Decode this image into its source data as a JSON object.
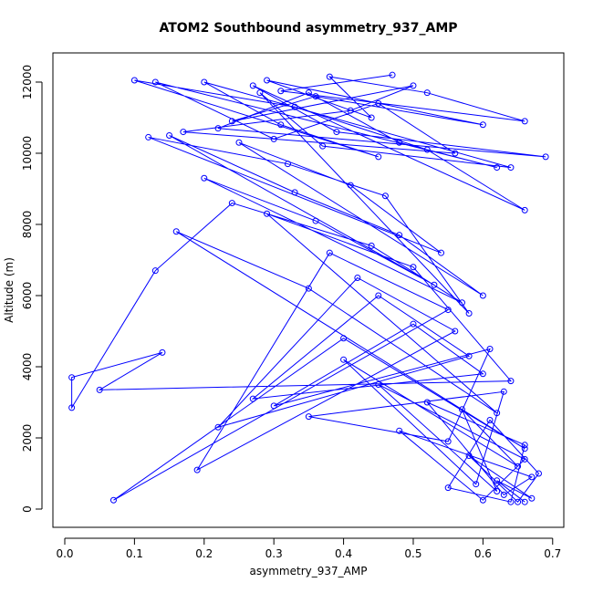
{
  "chart_data": {
    "type": "line",
    "title": "ATOM2 Southbound asymmetry_937_AMP",
    "x_label": "asymmetry_937_AMP",
    "y_label": "Altitude (m)",
    "color": "#0000ff",
    "markers": true,
    "xlim": [
      -0.017,
      0.716
    ],
    "ylim": [
      -513,
      12820
    ],
    "xticks": [
      {
        "value": 0,
        "label": "0.0"
      },
      0.1,
      0.2,
      0.3,
      0.4,
      0.5,
      0.6,
      0.7
    ],
    "yticks": [
      0,
      2000,
      4000,
      6000,
      8000,
      10000,
      12000
    ],
    "x": [
      0.66,
      0.62,
      0.67,
      0.58,
      0.65,
      0.68,
      0.61,
      0.55,
      0.64,
      0.66,
      0.52,
      0.63,
      0.67,
      0.48,
      0.6,
      0.66,
      0.45,
      0.62,
      0.57,
      0.65,
      0.4,
      0.59,
      0.63,
      0.35,
      0.55,
      0.61,
      0.3,
      0.5,
      0.6,
      0.27,
      0.45,
      0.58,
      0.22,
      0.42,
      0.56,
      0.19,
      0.38,
      0.55,
      0.07,
      0.4,
      0.66,
      0.16,
      0.35,
      0.62,
      0.29,
      0.5,
      0.64,
      0.05,
      0.14,
      0.01,
      0.01,
      0.13,
      0.24,
      0.44,
      0.57,
      0.2,
      0.36,
      0.53,
      0.15,
      0.33,
      0.48,
      0.6,
      0.25,
      0.41,
      0.54,
      0.12,
      0.32,
      0.46,
      0.58,
      0.28,
      0.37,
      0.64,
      0.2,
      0.31,
      0.45,
      0.1,
      0.33,
      0.52,
      0.66,
      0.27,
      0.39,
      0.69,
      0.22,
      0.35,
      0.48,
      0.62,
      0.13,
      0.3,
      0.45,
      0.56,
      0.17,
      0.41,
      0.5,
      0.24,
      0.36,
      0.6,
      0.29,
      0.44,
      0.38,
      0.52,
      0.66,
      0.31,
      0.47
    ],
    "values": [
      200,
      800,
      300,
      1500,
      200,
      1000,
      2500,
      600,
      200,
      1800,
      3000,
      400,
      900,
      2200,
      250,
      1400,
      3500,
      500,
      2800,
      1200,
      4200,
      700,
      3300,
      2600,
      1900,
      4500,
      2900,
      5200,
      3800,
      3100,
      6000,
      4300,
      2300,
      6500,
      5000,
      1100,
      7200,
      5600,
      250,
      4800,
      1700,
      7800,
      6200,
      2700,
      8300,
      6800,
      3600,
      3350,
      4400,
      3700,
      2850,
      6700,
      8600,
      7400,
      5800,
      9300,
      8100,
      6300,
      10500,
      8900,
      7700,
      6000,
      10300,
      9100,
      7200,
      10450,
      9700,
      8800,
      5500,
      11700,
      10200,
      9600,
      12000,
      10800,
      9900,
      12050,
      11300,
      10100,
      8400,
      11900,
      10600,
      9900,
      10700,
      11700,
      10300,
      9600,
      12000,
      10400,
      11400,
      10000,
      10600,
      11200,
      11900,
      10900,
      11600,
      10800,
      12050,
      11000,
      12150,
      11700,
      10900,
      11750,
      12200
    ]
  }
}
